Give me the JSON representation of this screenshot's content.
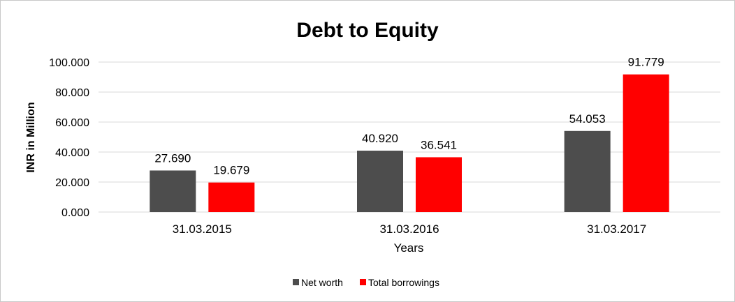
{
  "chart_data": {
    "type": "bar",
    "title": "Debt to Equity",
    "xlabel": "Years",
    "ylabel": "INR in Million",
    "categories": [
      "31.03.2015",
      "31.03.2016",
      "31.03.2017"
    ],
    "series": [
      {
        "name": "Net worth",
        "values": [
          27.69,
          40.92,
          54.053
        ],
        "labels": [
          "27.690",
          "40.920",
          "54.053"
        ],
        "color": "#4d4d4d"
      },
      {
        "name": "Total borrowings",
        "values": [
          19.679,
          36.541,
          91.779
        ],
        "labels": [
          "19.679",
          "36.541",
          "91.779"
        ],
        "color": "#ff0000"
      }
    ],
    "ylim": [
      0,
      100
    ],
    "yticks": [
      0,
      20,
      40,
      60,
      80,
      100
    ],
    "ytick_labels": [
      "0.000",
      "20.000",
      "40.000",
      "60.000",
      "80.000",
      "100.000"
    ],
    "grid": true,
    "gridline_color": "#d9d9d9",
    "legend_position": "bottom"
  }
}
